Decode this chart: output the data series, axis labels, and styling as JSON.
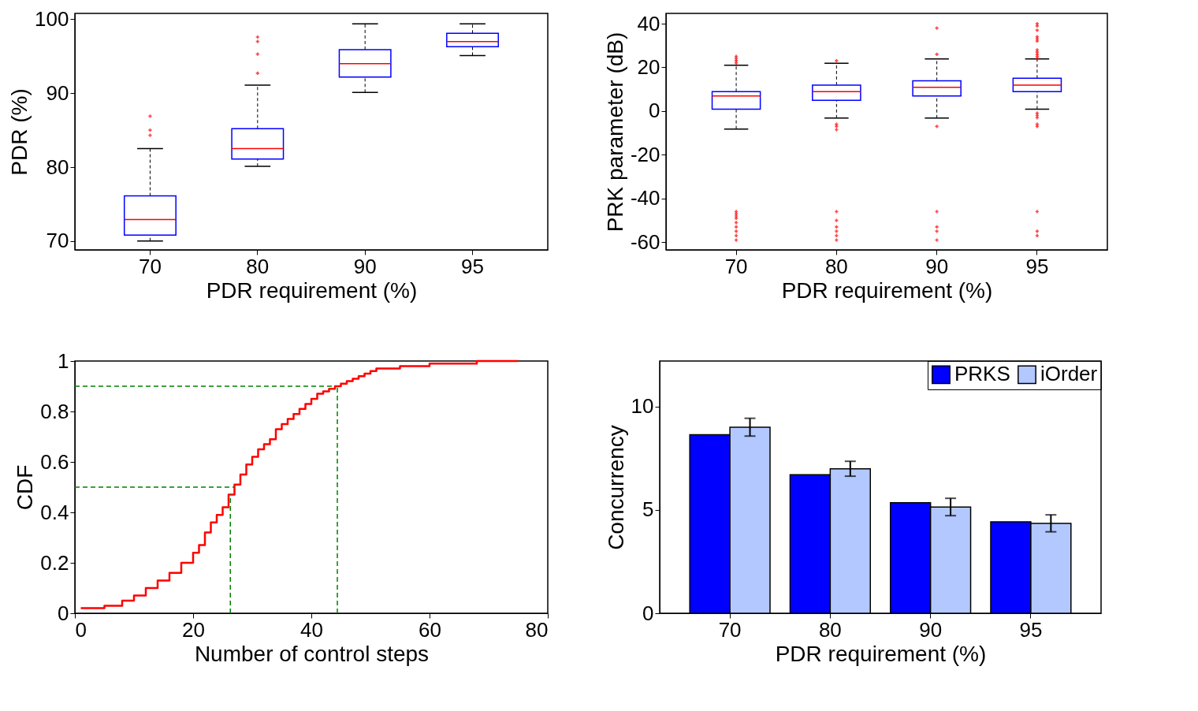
{
  "chart_data": [
    {
      "type": "box",
      "categories": [
        "70",
        "80",
        "90",
        "95"
      ],
      "xlabel": "PDR requirement (%)",
      "ylabel": "PDR (%)",
      "ylim": [
        68.8,
        100.8
      ],
      "yticks": [
        70,
        80,
        90,
        100
      ],
      "series": [
        {
          "color": "#0000ff",
          "boxes": [
            {
              "low": 70.0,
              "q1": 70.8,
              "median": 72.9,
              "q3": 76.1,
              "high": 82.5,
              "outliers": [
                86.9,
                85.0,
                84.3
              ]
            },
            {
              "low": 80.1,
              "q1": 81.1,
              "median": 82.5,
              "q3": 85.2,
              "high": 91.1,
              "outliers": [
                97.6,
                97.0,
                95.3,
                92.7
              ]
            },
            {
              "low": 90.1,
              "q1": 92.2,
              "median": 94.0,
              "q3": 95.9,
              "high": 99.4
            },
            {
              "low": 95.1,
              "q1": 96.3,
              "median": 97.0,
              "q3": 98.1,
              "high": 99.4
            }
          ]
        }
      ]
    },
    {
      "type": "box",
      "categories": [
        "70",
        "80",
        "90",
        "95"
      ],
      "xlabel": "PDR requirement (%)",
      "ylabel": "PRK parameter (dB)",
      "ylim": [
        -63.5,
        44.7
      ],
      "yticks": [
        -60,
        -40,
        -20,
        0,
        20,
        40
      ],
      "series": [
        {
          "color": "#0000ff",
          "boxes": [
            {
              "low": -8.2,
              "q1": 0.9,
              "median": 6.9,
              "q3": 8.9,
              "high": 21.0,
              "outliers": [
                25,
                24,
                23,
                22,
                -46,
                -47,
                -48,
                -49,
                -51,
                -53,
                -55,
                -57,
                -59
              ]
            },
            {
              "low": -3.2,
              "q1": 4.9,
              "median": 8.9,
              "q3": 11.9,
              "high": 21.9,
              "outliers": [
                23,
                -6,
                -7,
                -8.5,
                -46,
                -50,
                -53,
                -55,
                -57,
                -59
              ]
            },
            {
              "low": -3.2,
              "q1": 6.9,
              "median": 10.9,
              "q3": 13.9,
              "high": 23.9,
              "outliers": [
                38,
                26,
                -7,
                -46,
                -53,
                -55,
                -59
              ]
            },
            {
              "low": 0.9,
              "q1": 8.9,
              "median": 11.9,
              "q3": 15.0,
              "high": 23.9,
              "outliers": [
                40,
                39,
                37,
                34,
                33,
                32,
                28,
                27,
                26,
                25,
                24,
                -1,
                -2,
                -3,
                -6,
                -7,
                -46,
                -55,
                -57
              ]
            }
          ]
        }
      ]
    },
    {
      "type": "step",
      "xlabel": "Number of control steps",
      "ylabel": "CDF",
      "xlim": [
        0,
        80
      ],
      "ylim": [
        0,
        1
      ],
      "xticks": [
        0,
        20,
        40,
        60,
        80
      ],
      "yticks": [
        0,
        0.2,
        0.4,
        0.6,
        0.8,
        1
      ],
      "series": [
        {
          "color": "#ff0000",
          "x": [
            1,
            5,
            8,
            10,
            12,
            14,
            16,
            18,
            20,
            21,
            22,
            23,
            24,
            25,
            26,
            27,
            28,
            29,
            30,
            31,
            32,
            33,
            34,
            35,
            36,
            37,
            38,
            39,
            40,
            41,
            42,
            43,
            44,
            45,
            46,
            47,
            48,
            49,
            50,
            51,
            52,
            55,
            60,
            65,
            68,
            75
          ],
          "values": [
            0.02,
            0.03,
            0.05,
            0.07,
            0.1,
            0.13,
            0.16,
            0.2,
            0.24,
            0.27,
            0.32,
            0.36,
            0.39,
            0.42,
            0.47,
            0.51,
            0.55,
            0.59,
            0.62,
            0.65,
            0.67,
            0.69,
            0.73,
            0.75,
            0.77,
            0.79,
            0.81,
            0.83,
            0.85,
            0.87,
            0.88,
            0.89,
            0.9,
            0.91,
            0.92,
            0.93,
            0.94,
            0.95,
            0.96,
            0.97,
            0.97,
            0.98,
            0.99,
            0.99,
            1.0,
            1.0
          ]
        }
      ],
      "ref_lines": [
        {
          "axis": "y",
          "value": 0.5,
          "color": "#008000",
          "line_style": "dashed"
        },
        {
          "axis": "y",
          "value": 0.9,
          "color": "#008000",
          "line_style": "dashed"
        },
        {
          "axis": "x",
          "value": 26.3,
          "color": "#008000",
          "line_style": "dashed"
        },
        {
          "axis": "x",
          "value": 44.4,
          "color": "#008000",
          "line_style": "dashed"
        }
      ]
    },
    {
      "type": "bar",
      "categories": [
        "70",
        "80",
        "90",
        "95"
      ],
      "xlabel": "PDR requirement (%)",
      "ylabel": "Concurrency",
      "ylim": [
        0,
        12.2
      ],
      "yticks": [
        0,
        5,
        10
      ],
      "legend": "top right",
      "series": [
        {
          "name": "PRKS",
          "color": "#0000ff",
          "values": [
            8.64,
            6.7,
            5.35,
            4.42
          ]
        },
        {
          "name": "iOrder",
          "color": "#b3c8ff",
          "values": [
            9.0,
            6.99,
            5.14,
            4.35
          ],
          "errors": [
            0.43,
            0.36,
            0.42,
            0.41
          ]
        }
      ]
    }
  ]
}
